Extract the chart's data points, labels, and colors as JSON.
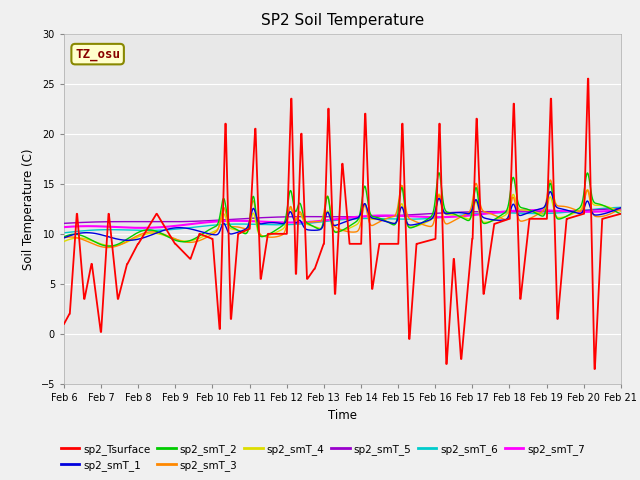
{
  "title": "SP2 Soil Temperature",
  "ylabel": "Soil Temperature (C)",
  "xlabel": "Time",
  "tz_label": "TZ_osu",
  "ylim": [
    -5,
    30
  ],
  "yticks": [
    -5,
    0,
    5,
    10,
    15,
    20,
    25,
    30
  ],
  "xlim": [
    6,
    21
  ],
  "xtick_positions": [
    6,
    7,
    8,
    9,
    10,
    11,
    12,
    13,
    14,
    15,
    16,
    17,
    18,
    19,
    20,
    21
  ],
  "xtick_labels": [
    "Feb 6",
    "Feb 7",
    "Feb 8",
    "Feb 9",
    "Feb 10",
    "Feb 11",
    "Feb 12",
    "Feb 13",
    "Feb 14",
    "Feb 15",
    "Feb 16",
    "Feb 17",
    "Feb 18",
    "Feb 19",
    "Feb 20",
    "Feb 21"
  ],
  "fig_facecolor": "#f0f0f0",
  "plot_facecolor": "#e8e8e8",
  "grid_color": "#ffffff",
  "series_colors": {
    "sp2_Tsurface": "#ff0000",
    "sp2_smT_1": "#0000dd",
    "sp2_smT_2": "#00cc00",
    "sp2_smT_3": "#ff8800",
    "sp2_smT_4": "#dddd00",
    "sp2_smT_5": "#9900cc",
    "sp2_smT_6": "#00cccc",
    "sp2_smT_7": "#ff00ff"
  },
  "legend_order": [
    "sp2_Tsurface",
    "sp2_smT_1",
    "sp2_smT_2",
    "sp2_smT_3",
    "sp2_smT_4",
    "sp2_smT_5",
    "sp2_smT_6",
    "sp2_smT_7"
  ],
  "tz_box_facecolor": "#ffffcc",
  "tz_box_edgecolor": "#888800",
  "tz_text_color": "#880000"
}
